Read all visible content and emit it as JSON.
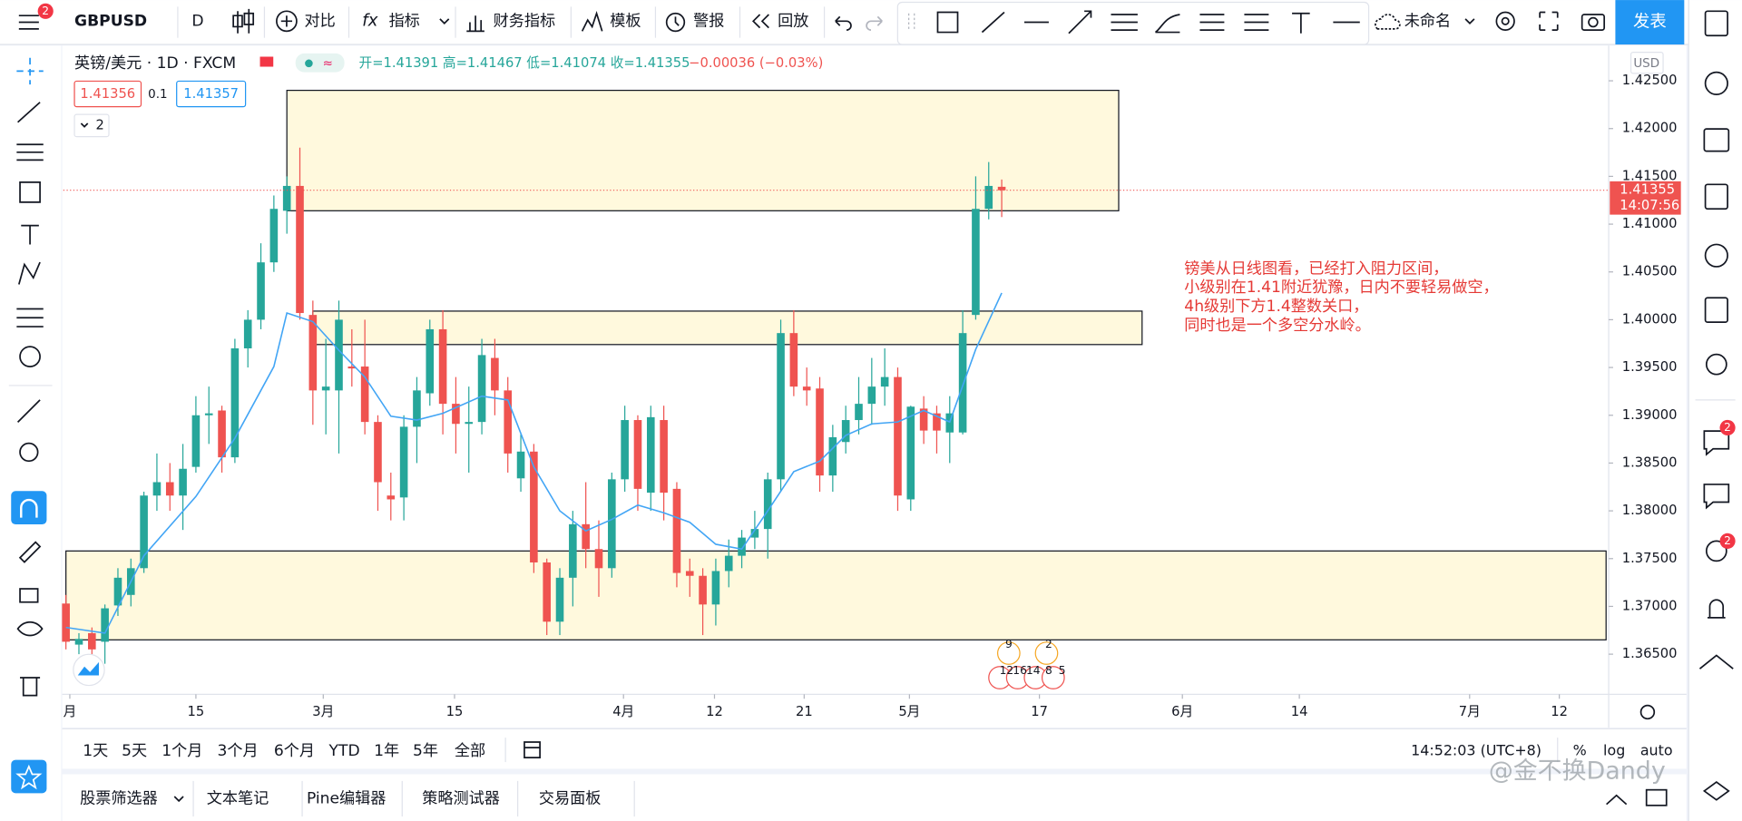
{
  "toolbar": {
    "badge": "2",
    "symbol": "GBPUSD",
    "interval": "D",
    "compare": "对比",
    "indicators": "指标",
    "financials": "财务指标",
    "templates": "模板",
    "alerts": "警报",
    "replay": "回放",
    "layout_name": "未命名",
    "publish": "发表"
  },
  "legend": {
    "symbol": "英镑/美元 · 1D · FXCM",
    "ohlc": "开=1.41391 高=1.41467 低=1.41074 收=1.41355",
    "change": "−0.00036 (−0.03%)",
    "bid": "1.41356",
    "spread": "0.1",
    "ask": "1.41357",
    "collapsed": "2"
  },
  "currency": "USD",
  "sidebar": {
    "badges": [
      "2",
      "2"
    ]
  },
  "events": [
    "9",
    "2",
    "12",
    "16",
    "14",
    "8",
    "5"
  ],
  "chart_data": {
    "type": "candlestick",
    "x": [
      0,
      1,
      2,
      3,
      4,
      5,
      6,
      7,
      8,
      9,
      10,
      11,
      12,
      13,
      14,
      15,
      16,
      17,
      18,
      19,
      20,
      21,
      22,
      23,
      24,
      25,
      26,
      27,
      28,
      29,
      30,
      31,
      32,
      33,
      34,
      35,
      36,
      37,
      38,
      39,
      40,
      41,
      42,
      43,
      44,
      45,
      46,
      47,
      48,
      49,
      50,
      51,
      52,
      53,
      54,
      55,
      56,
      57,
      58,
      59,
      60,
      61,
      62,
      63,
      64,
      65,
      66,
      67,
      68,
      69,
      70,
      71,
      72
    ],
    "candles": [
      {
        "open": 1.3703,
        "high": 1.3712,
        "low": 1.3655,
        "close": 1.3663
      },
      {
        "open": 1.366,
        "high": 1.3672,
        "low": 1.365,
        "close": 1.3666
      },
      {
        "open": 1.3672,
        "high": 1.3678,
        "low": 1.364,
        "close": 1.3655
      },
      {
        "open": 1.3663,
        "high": 1.3702,
        "low": 1.364,
        "close": 1.3698
      },
      {
        "open": 1.3701,
        "high": 1.374,
        "low": 1.369,
        "close": 1.373
      },
      {
        "open": 1.3712,
        "high": 1.375,
        "low": 1.37,
        "close": 1.374
      },
      {
        "open": 1.374,
        "high": 1.382,
        "low": 1.3735,
        "close": 1.3816
      },
      {
        "open": 1.3816,
        "high": 1.386,
        "low": 1.38,
        "close": 1.383
      },
      {
        "open": 1.383,
        "high": 1.385,
        "low": 1.38,
        "close": 1.3816
      },
      {
        "open": 1.3816,
        "high": 1.387,
        "low": 1.378,
        "close": 1.3844
      },
      {
        "open": 1.3846,
        "high": 1.392,
        "low": 1.384,
        "close": 1.39
      },
      {
        "open": 1.39,
        "high": 1.393,
        "low": 1.387,
        "close": 1.3902
      },
      {
        "open": 1.3905,
        "high": 1.391,
        "low": 1.384,
        "close": 1.3856
      },
      {
        "open": 1.3856,
        "high": 1.398,
        "low": 1.385,
        "close": 1.397
      },
      {
        "open": 1.397,
        "high": 1.401,
        "low": 1.395,
        "close": 1.4
      },
      {
        "open": 1.4,
        "high": 1.408,
        "low": 1.399,
        "close": 1.406
      },
      {
        "open": 1.406,
        "high": 1.413,
        "low": 1.405,
        "close": 1.4116
      },
      {
        "open": 1.4114,
        "high": 1.415,
        "low": 1.409,
        "close": 1.414
      },
      {
        "open": 1.414,
        "high": 1.418,
        "low": 1.4,
        "close": 1.4007
      },
      {
        "open": 1.4005,
        "high": 1.402,
        "low": 1.389,
        "close": 1.3926
      },
      {
        "open": 1.3926,
        "high": 1.398,
        "low": 1.388,
        "close": 1.393
      },
      {
        "open": 1.3926,
        "high": 1.402,
        "low": 1.386,
        "close": 1.4
      },
      {
        "open": 1.3951,
        "high": 1.399,
        "low": 1.393,
        "close": 1.3949
      },
      {
        "open": 1.3951,
        "high": 1.4,
        "low": 1.388,
        "close": 1.3893
      },
      {
        "open": 1.3893,
        "high": 1.39,
        "low": 1.38,
        "close": 1.383
      },
      {
        "open": 1.3816,
        "high": 1.384,
        "low": 1.379,
        "close": 1.3812
      },
      {
        "open": 1.3814,
        "high": 1.39,
        "low": 1.379,
        "close": 1.3888
      },
      {
        "open": 1.3888,
        "high": 1.394,
        "low": 1.385,
        "close": 1.3926
      },
      {
        "open": 1.3923,
        "high": 1.4,
        "low": 1.391,
        "close": 1.399
      },
      {
        "open": 1.399,
        "high": 1.401,
        "low": 1.388,
        "close": 1.3912
      },
      {
        "open": 1.3912,
        "high": 1.394,
        "low": 1.386,
        "close": 1.3891
      },
      {
        "open": 1.3891,
        "high": 1.393,
        "low": 1.384,
        "close": 1.3893
      },
      {
        "open": 1.3893,
        "high": 1.398,
        "low": 1.388,
        "close": 1.3963
      },
      {
        "open": 1.396,
        "high": 1.398,
        "low": 1.39,
        "close": 1.3926
      },
      {
        "open": 1.3926,
        "high": 1.394,
        "low": 1.384,
        "close": 1.386
      },
      {
        "open": 1.3834,
        "high": 1.388,
        "low": 1.382,
        "close": 1.3862
      },
      {
        "open": 1.3862,
        "high": 1.387,
        "low": 1.3735,
        "close": 1.3746
      },
      {
        "open": 1.3746,
        "high": 1.375,
        "low": 1.367,
        "close": 1.3684
      },
      {
        "open": 1.3684,
        "high": 1.374,
        "low": 1.367,
        "close": 1.373
      },
      {
        "open": 1.373,
        "high": 1.38,
        "low": 1.37,
        "close": 1.3786
      },
      {
        "open": 1.3786,
        "high": 1.383,
        "low": 1.374,
        "close": 1.376
      },
      {
        "open": 1.376,
        "high": 1.379,
        "low": 1.371,
        "close": 1.374
      },
      {
        "open": 1.374,
        "high": 1.384,
        "low": 1.373,
        "close": 1.3833
      },
      {
        "open": 1.3833,
        "high": 1.391,
        "low": 1.382,
        "close": 1.3895
      },
      {
        "open": 1.3895,
        "high": 1.39,
        "low": 1.38,
        "close": 1.3823
      },
      {
        "open": 1.3819,
        "high": 1.391,
        "low": 1.38,
        "close": 1.3898
      },
      {
        "open": 1.3895,
        "high": 1.391,
        "low": 1.379,
        "close": 1.3819
      },
      {
        "open": 1.3823,
        "high": 1.383,
        "low": 1.372,
        "close": 1.3735
      },
      {
        "open": 1.3737,
        "high": 1.375,
        "low": 1.371,
        "close": 1.3732
      },
      {
        "open": 1.3732,
        "high": 1.374,
        "low": 1.367,
        "close": 1.3702
      },
      {
        "open": 1.3702,
        "high": 1.375,
        "low": 1.368,
        "close": 1.3737
      },
      {
        "open": 1.3737,
        "high": 1.377,
        "low": 1.372,
        "close": 1.3753
      },
      {
        "open": 1.3753,
        "high": 1.378,
        "low": 1.374,
        "close": 1.3772
      },
      {
        "open": 1.3772,
        "high": 1.38,
        "low": 1.376,
        "close": 1.3781
      },
      {
        "open": 1.3781,
        "high": 1.384,
        "low": 1.375,
        "close": 1.3833
      },
      {
        "open": 1.3833,
        "high": 1.4,
        "low": 1.382,
        "close": 1.3986
      },
      {
        "open": 1.3986,
        "high": 1.401,
        "low": 1.392,
        "close": 1.393
      },
      {
        "open": 1.393,
        "high": 1.395,
        "low": 1.391,
        "close": 1.3926
      },
      {
        "open": 1.3928,
        "high": 1.394,
        "low": 1.382,
        "close": 1.3837
      },
      {
        "open": 1.3837,
        "high": 1.389,
        "low": 1.382,
        "close": 1.3877
      },
      {
        "open": 1.3872,
        "high": 1.391,
        "low": 1.386,
        "close": 1.3895
      },
      {
        "open": 1.3895,
        "high": 1.394,
        "low": 1.388,
        "close": 1.3912
      },
      {
        "open": 1.3912,
        "high": 1.396,
        "low": 1.389,
        "close": 1.393
      },
      {
        "open": 1.393,
        "high": 1.397,
        "low": 1.391,
        "close": 1.394
      },
      {
        "open": 1.394,
        "high": 1.395,
        "low": 1.38,
        "close": 1.3816
      },
      {
        "open": 1.3812,
        "high": 1.391,
        "low": 1.38,
        "close": 1.3909
      },
      {
        "open": 1.3907,
        "high": 1.392,
        "low": 1.387,
        "close": 1.3884
      },
      {
        "open": 1.3902,
        "high": 1.391,
        "low": 1.386,
        "close": 1.3884
      },
      {
        "open": 1.3882,
        "high": 1.392,
        "low": 1.385,
        "close": 1.3902
      },
      {
        "open": 1.3882,
        "high": 1.401,
        "low": 1.388,
        "close": 1.3986
      },
      {
        "open": 1.4005,
        "high": 1.415,
        "low": 1.4,
        "close": 1.4116
      },
      {
        "open": 1.4116,
        "high": 1.4165,
        "low": 1.4105,
        "close": 1.414
      },
      {
        "open": 1.41391,
        "high": 1.41467,
        "low": 1.41074,
        "close": 1.41355
      }
    ],
    "up_color": "#26a69a",
    "down_color": "#ef5350",
    "ma": {
      "color": "#42a5f5",
      "x": [
        0,
        3,
        6,
        10,
        13,
        16,
        17,
        19,
        21,
        23,
        25,
        27,
        29,
        32,
        34,
        36,
        38,
        40,
        42,
        44,
        46,
        48,
        50,
        52,
        54,
        56,
        58,
        60,
        62,
        64,
        66,
        68,
        70,
        72
      ],
      "values": [
        1.3678,
        1.3672,
        1.3753,
        1.3815,
        1.3876,
        1.3951,
        1.4007,
        1.3998,
        1.3968,
        1.394,
        1.3899,
        1.3895,
        1.3902,
        1.392,
        1.3916,
        1.3846,
        1.38,
        1.3779,
        1.3791,
        1.3806,
        1.3798,
        1.3788,
        1.3765,
        1.376,
        1.38,
        1.3841,
        1.3852,
        1.3879,
        1.3891,
        1.3893,
        1.3905,
        1.3893,
        1.3969,
        1.4028
      ]
    },
    "zones": [
      {
        "x0": 17,
        "x1": 81,
        "top": 1.424,
        "bottom": 1.4114
      },
      {
        "x0": 19,
        "x1": 82.8,
        "top": 1.4009,
        "bottom": 1.3974
      },
      {
        "x0": 0,
        "x1": 118.5,
        "top": 1.3758,
        "bottom": 1.3665
      }
    ],
    "zone_color": "#fff9dd",
    "last_price": {
      "value": 1.41355,
      "label": "1.41355",
      "countdown": "14:07:56"
    },
    "xlim": [
      -0.2,
      118.7
    ],
    "ylim": [
      1.3608,
      1.4288
    ],
    "yticks": [
      {
        "value": 1.425,
        "label": "1.42500"
      },
      {
        "value": 1.42,
        "label": "1.42000"
      },
      {
        "value": 1.415,
        "label": "1.41500"
      },
      {
        "value": 1.41,
        "label": "1.41000"
      },
      {
        "value": 1.405,
        "label": "1.40500"
      },
      {
        "value": 1.4,
        "label": "1.40000"
      },
      {
        "value": 1.395,
        "label": "1.39500"
      },
      {
        "value": 1.39,
        "label": "1.39000"
      },
      {
        "value": 1.385,
        "label": "1.38500"
      },
      {
        "value": 1.38,
        "label": "1.38000"
      },
      {
        "value": 1.375,
        "label": "1.37500"
      },
      {
        "value": 1.37,
        "label": "1.37000"
      },
      {
        "value": 1.365,
        "label": "1.36500"
      }
    ],
    "xticks": [
      {
        "value": 0.3,
        "label": "月"
      },
      {
        "value": 10,
        "label": "15"
      },
      {
        "value": 19.8,
        "label": "3月"
      },
      {
        "value": 29.9,
        "label": "15"
      },
      {
        "value": 42.9,
        "label": "4月"
      },
      {
        "value": 49.9,
        "label": "12"
      },
      {
        "value": 56.8,
        "label": "21"
      },
      {
        "value": 64.9,
        "label": "5月"
      },
      {
        "value": 74.9,
        "label": "17"
      },
      {
        "value": 85.9,
        "label": "6月"
      },
      {
        "value": 94.9,
        "label": "14"
      },
      {
        "value": 108,
        "label": "7月"
      },
      {
        "value": 114.9,
        "label": "12"
      }
    ],
    "annotation": [
      "镑美从日线图看，已经打入阻力区间，",
      "小级别在1.41附近犹豫，日内不要轻易做空，",
      "4h级别下方1.4整数关口，",
      "同时也是一个多空分水岭。"
    ],
    "annotation_color": "#e53935"
  },
  "bottom_bar": {
    "ranges": [
      "1天",
      "5天",
      "1个月",
      "3个月",
      "6个月",
      "YTD",
      "1年",
      "5年",
      "全部"
    ],
    "clock": "14:52:03 (UTC+8)",
    "percent": "%",
    "log": "log",
    "auto": "auto"
  },
  "tabs": [
    "股票筛选器",
    "文本笔记",
    "Pine编辑器",
    "策略测试器",
    "交易面板"
  ],
  "watermark": "@金不换Dandy"
}
